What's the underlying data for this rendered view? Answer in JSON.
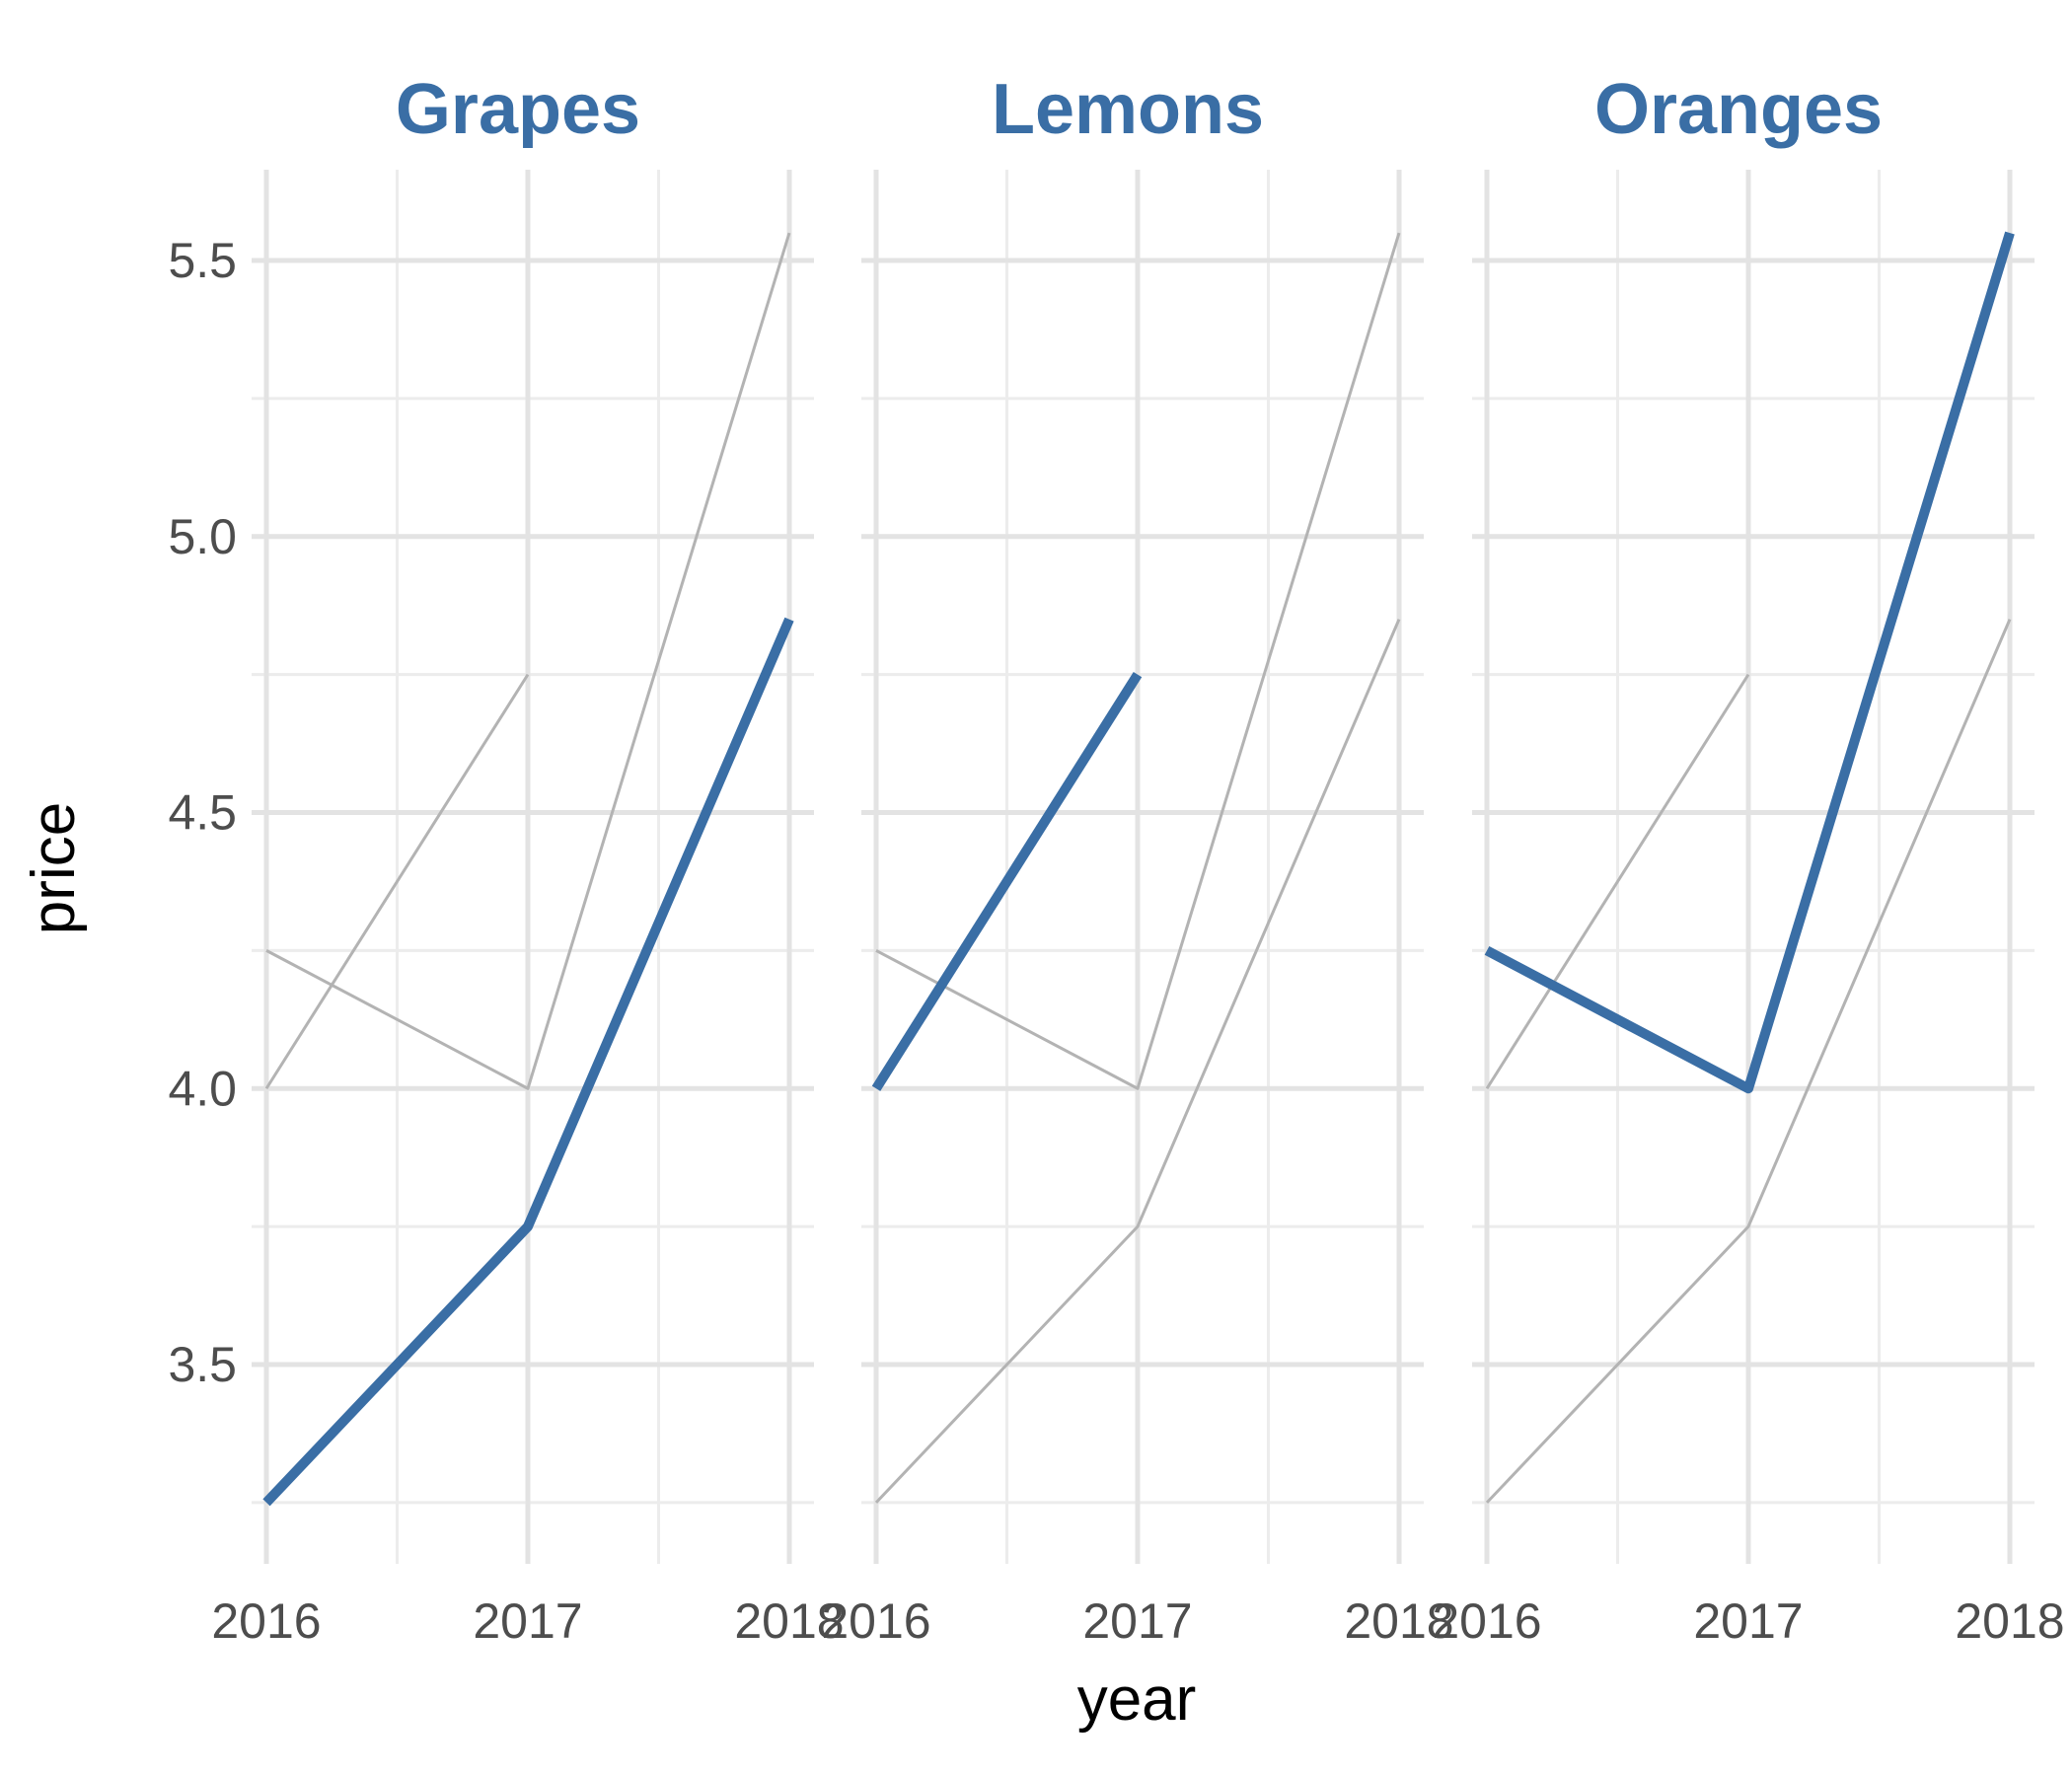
{
  "chart_data": {
    "type": "line",
    "facet_by": "fruit",
    "facets": [
      "Grapes",
      "Lemons",
      "Oranges"
    ],
    "x": [
      2016,
      2017,
      2018
    ],
    "x_tick_labels": [
      "2016",
      "2017",
      "2018"
    ],
    "y_ticks": [
      3.5,
      4.0,
      4.5,
      5.0,
      5.5
    ],
    "y_tick_labels": [
      "3.5",
      "4.0",
      "4.5",
      "5.0",
      "5.5"
    ],
    "ylim": [
      3.25,
      5.55
    ],
    "xlabel": "year",
    "ylabel": "price",
    "grid": true,
    "legend": "none",
    "series": [
      {
        "name": "Grapes",
        "values": [
          3.25,
          3.75,
          4.85
        ]
      },
      {
        "name": "Lemons",
        "values": [
          4.0,
          4.75,
          null
        ]
      },
      {
        "name": "Oranges",
        "values": [
          4.25,
          4.0,
          5.55
        ]
      }
    ],
    "colors": {
      "highlight": "#3a6ea5",
      "context": "#b3b3b3",
      "grid_major": "#e3e3e3",
      "grid_minor": "#ececec",
      "facet_title": "#3a6ea5"
    }
  }
}
